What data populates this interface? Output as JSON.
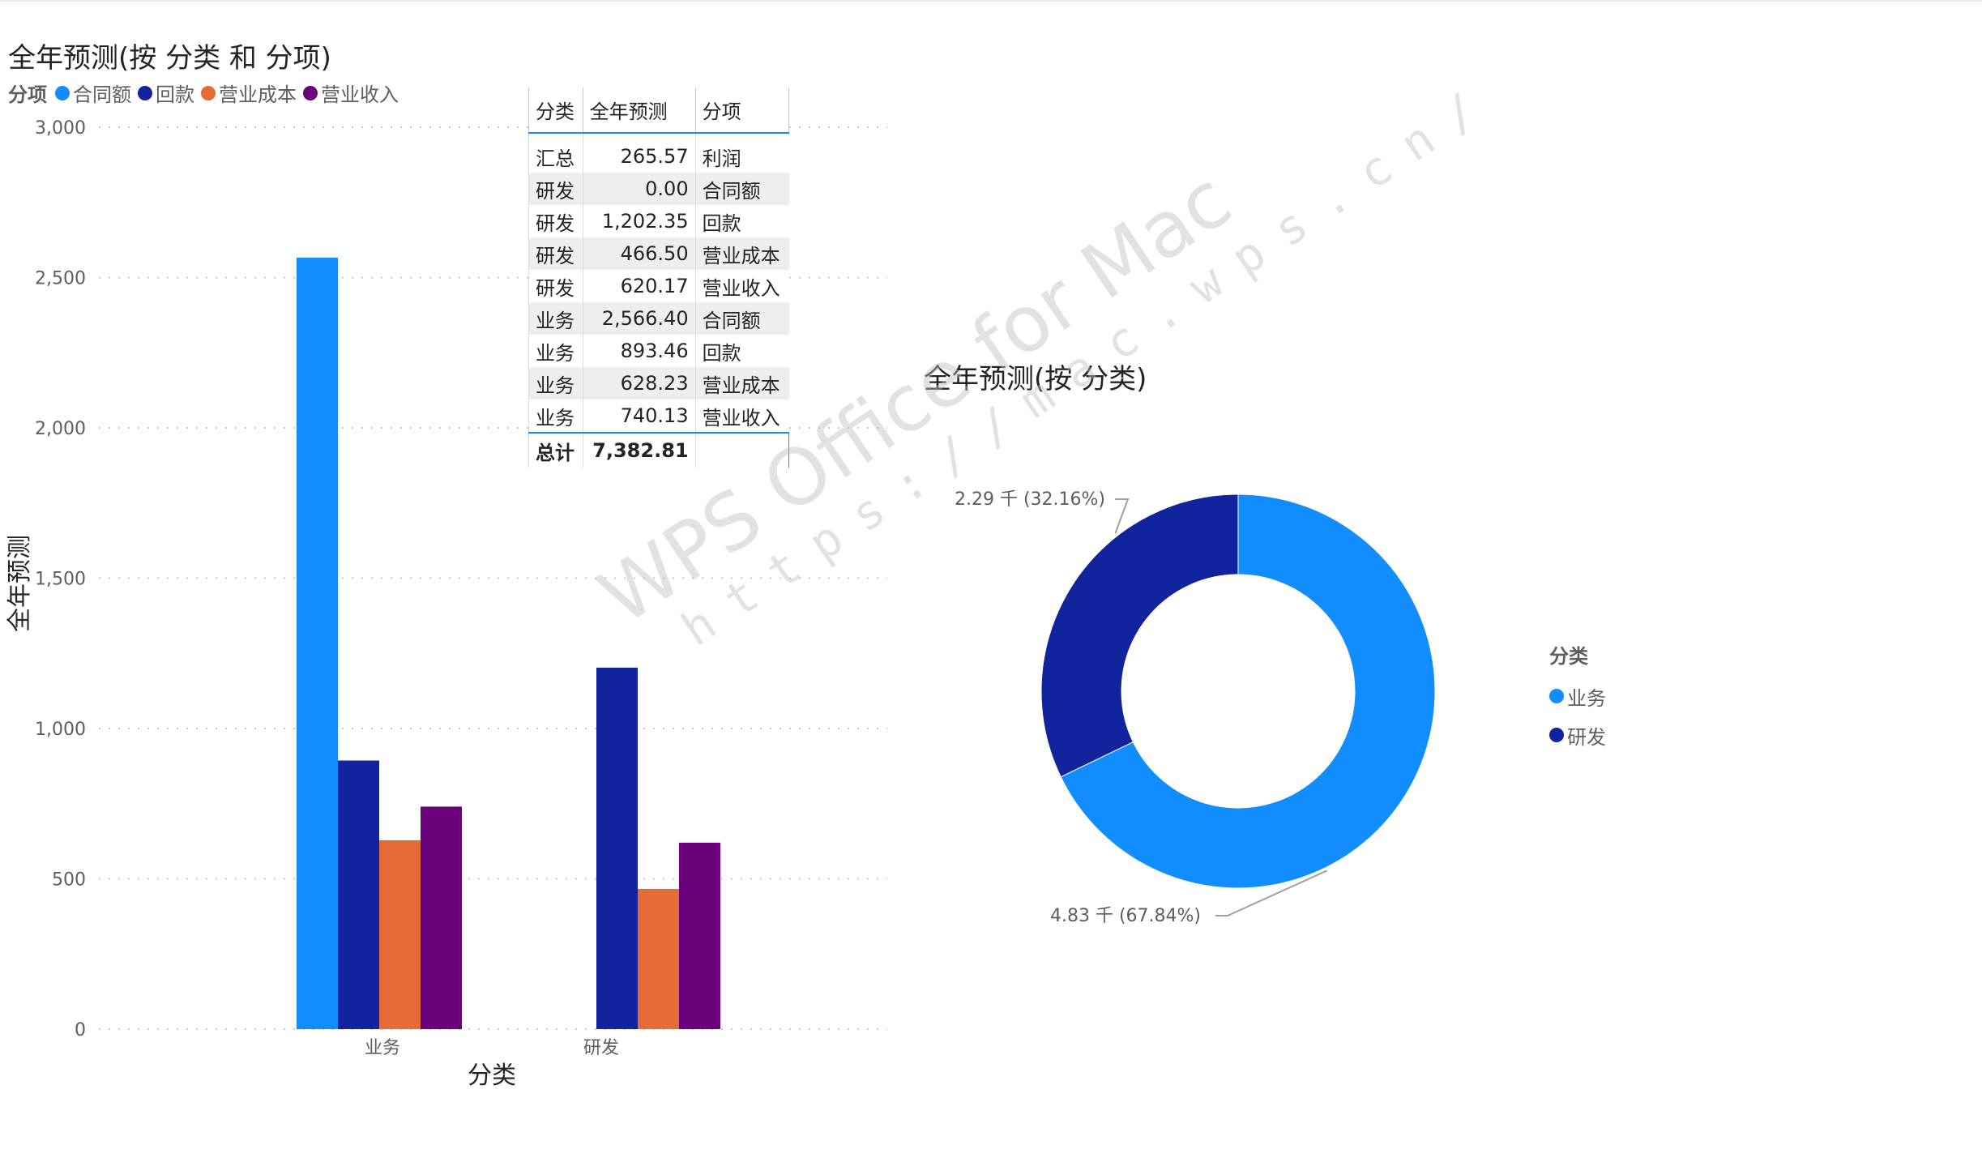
{
  "bar_chart": {
    "title": "全年预测(按 分类 和 分项)",
    "legend_title": "分项",
    "ylabel": "全年预测",
    "xlabel": "分类"
  },
  "table": {
    "headers": [
      "分类",
      "全年预测",
      "分项"
    ],
    "rows": [
      [
        "汇总",
        "265.57",
        "利润"
      ],
      [
        "研发",
        "0.00",
        "合同额"
      ],
      [
        "研发",
        "1,202.35",
        "回款"
      ],
      [
        "研发",
        "466.50",
        "营业成本"
      ],
      [
        "研发",
        "620.17",
        "营业收入"
      ],
      [
        "业务",
        "2,566.40",
        "合同额"
      ],
      [
        "业务",
        "893.46",
        "回款"
      ],
      [
        "业务",
        "628.23",
        "营业成本"
      ],
      [
        "业务",
        "740.13",
        "营业收入"
      ]
    ],
    "total": [
      "总计",
      "7,382.81",
      ""
    ]
  },
  "donut": {
    "title": "全年预测(按 分类)",
    "legend_title": "分类",
    "legend": [
      {
        "label": "业务",
        "color": "#118dff"
      },
      {
        "label": "研发",
        "color": "#12239e"
      }
    ],
    "labels": [
      "4.83 千 (67.84%)",
      "2.29 千 (32.16%)"
    ]
  },
  "watermark": {
    "line1": "WPS Office for Mac",
    "line2": "https://mac.wps.cn/"
  },
  "chart_data": [
    {
      "type": "bar",
      "title": "全年预测(按 分类 和 分项)",
      "xlabel": "分类",
      "ylabel": "全年预测",
      "categories": [
        "业务",
        "研发"
      ],
      "series": [
        {
          "name": "合同额",
          "color": "#118dff",
          "values": [
            2566.4,
            0.0
          ]
        },
        {
          "name": "回款",
          "color": "#12239e",
          "values": [
            893.46,
            1202.35
          ]
        },
        {
          "name": "营业成本",
          "color": "#e66c37",
          "values": [
            628.23,
            466.5
          ]
        },
        {
          "name": "营业收入",
          "color": "#6b007b",
          "values": [
            740.13,
            620.17
          ]
        }
      ],
      "ylim": [
        0,
        3000
      ],
      "yticks": [
        0,
        500,
        1000,
        1500,
        2000,
        2500,
        3000
      ],
      "ytick_labels": [
        "0",
        "500",
        "1,000",
        "1,500",
        "2,000",
        "2,500",
        "3,000"
      ],
      "grid": true,
      "legend_position": "top-left"
    },
    {
      "type": "pie",
      "title": "全年预测(按 分类)",
      "donut": true,
      "slices": [
        {
          "label": "业务",
          "value": 4828.22,
          "percent": 67.84,
          "color": "#118dff",
          "data_label": "4.83 千 (67.84%)"
        },
        {
          "label": "研发",
          "value": 2289.02,
          "percent": 32.16,
          "color": "#12239e",
          "data_label": "2.29 千 (32.16%)"
        }
      ],
      "legend_position": "right"
    }
  ]
}
